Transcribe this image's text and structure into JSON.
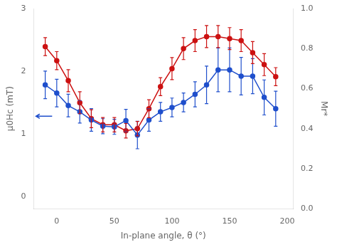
{
  "chart_data": {
    "type": "line",
    "xlabel": "In-plane angle, θ (°)",
    "ylabel": "μ0Hc (mT)",
    "y2label": "Mr*",
    "xlim": [
      -20,
      205
    ],
    "xticks": [
      0,
      50,
      100,
      150,
      200
    ],
    "ylim": [
      -0.2,
      3.0
    ],
    "yticks": [
      0,
      1,
      2,
      3
    ],
    "y2lim": [
      0.0,
      1.0
    ],
    "y2ticks": [
      {
        "value": 0.0,
        "label": "0.0"
      },
      0.2,
      0.4,
      0.6,
      0.8,
      {
        "value": 1.0,
        "label": "1.0"
      }
    ],
    "grid": false,
    "series": [
      {
        "color": "#1f4fcc",
        "marker": "circle",
        "line_style": "solid",
        "axis": "y",
        "x": [
          -10,
          0,
          10,
          20,
          30,
          40,
          50,
          60,
          70,
          80,
          90,
          100,
          110,
          120,
          130,
          140,
          150,
          160,
          170,
          180,
          190
        ],
        "values": [
          1.78,
          1.65,
          1.45,
          1.35,
          1.22,
          1.12,
          1.11,
          1.21,
          0.98,
          1.22,
          1.35,
          1.42,
          1.5,
          1.63,
          1.78,
          2.02,
          2.02,
          1.92,
          1.92,
          1.58,
          1.4
        ],
        "yerr": [
          0.22,
          0.22,
          0.18,
          0.18,
          0.18,
          0.12,
          0.12,
          0.18,
          0.22,
          0.18,
          0.15,
          0.15,
          0.15,
          0.2,
          0.3,
          0.35,
          0.35,
          0.3,
          0.28,
          0.28,
          0.28
        ]
      },
      {
        "color": "#cc1111",
        "marker": "circle",
        "line_style": "solid",
        "axis": "y2",
        "x": [
          -10,
          0,
          10,
          20,
          30,
          40,
          50,
          60,
          70,
          80,
          90,
          100,
          110,
          120,
          130,
          140,
          150,
          160,
          170,
          180,
          190
        ],
        "values": [
          0.81,
          0.74,
          0.64,
          0.53,
          0.45,
          0.42,
          0.42,
          0.39,
          0.4,
          0.5,
          0.61,
          0.7,
          0.8,
          0.84,
          0.86,
          0.86,
          0.85,
          0.84,
          0.78,
          0.72,
          0.66
        ],
        "yerr": [
          0.045,
          0.045,
          0.055,
          0.055,
          0.045,
          0.036,
          0.036,
          0.036,
          0.036,
          0.045,
          0.045,
          0.055,
          0.055,
          0.055,
          0.055,
          0.055,
          0.055,
          0.055,
          0.055,
          0.055,
          0.045
        ]
      }
    ],
    "arrows": [
      {
        "from": [
          -4,
          1.28
        ],
        "to": [
          -18,
          1.28
        ],
        "axis": "y",
        "color": "#1f4fcc"
      }
    ]
  }
}
